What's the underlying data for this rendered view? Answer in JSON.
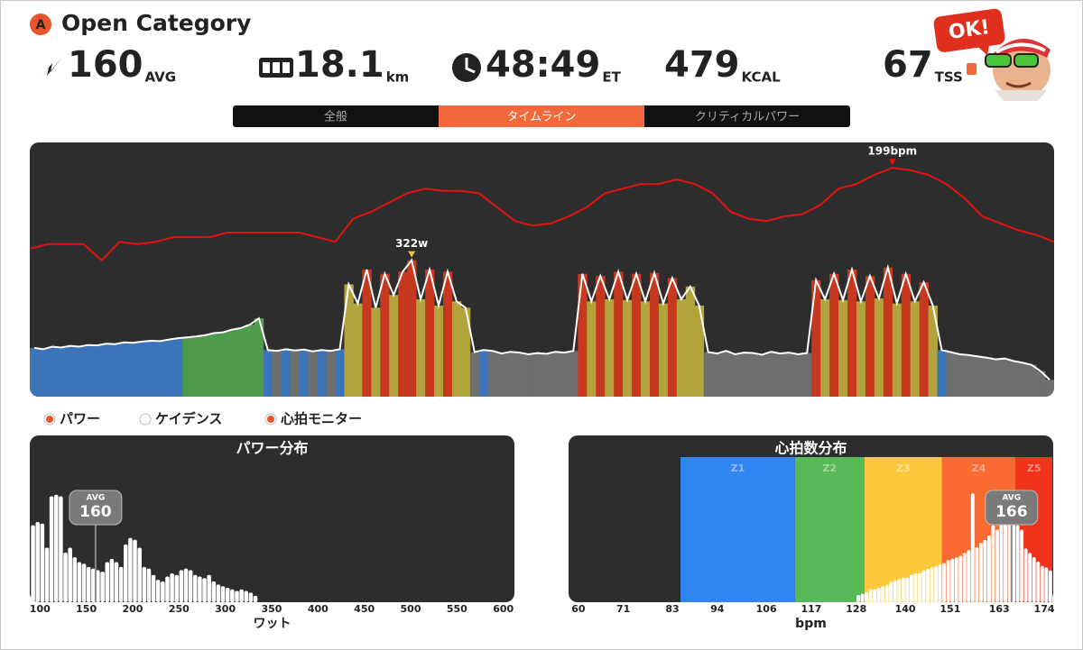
{
  "header": {
    "badge": "A",
    "title": "Open Category",
    "ok_badge": "OK!"
  },
  "stats": [
    {
      "value": 160,
      "unit": "AVG"
    },
    {
      "value": 18.1,
      "unit": "km"
    },
    {
      "value": "48:49",
      "unit": "ET"
    },
    {
      "value": 479,
      "unit": "KCAL"
    },
    {
      "value": 67,
      "unit": "TSS"
    }
  ],
  "tabs": {
    "items": [
      "全般",
      "タイムライン",
      "クリティカルパワー"
    ],
    "active": 1
  },
  "legend": [
    {
      "label": "パワー",
      "on": true
    },
    {
      "label": "ケイデンス",
      "on": false
    },
    {
      "label": "心拍モニター",
      "on": true
    }
  ],
  "chart_data": [
    {
      "type": "timeline",
      "ylim": [
        0,
        600
      ],
      "y2lim": [
        100,
        210
      ],
      "series": [
        {
          "kind": "bar",
          "line_color": "#ffffff",
          "peak_label": "322w",
          "peak_color": "#f2c23a",
          "zone_limits": [
            110,
            140,
            200,
            270
          ],
          "zone_colors": [
            "#6e6e6e",
            "#3b74b9",
            "#4f9b4c",
            "#b3a33b",
            "#c6391f"
          ],
          "values": [
            115,
            112,
            118,
            116,
            120,
            118,
            122,
            121,
            125,
            124,
            128,
            127,
            130,
            132,
            131,
            135,
            138,
            140,
            142,
            145,
            150,
            152,
            158,
            162,
            170,
            185,
            110,
            108,
            112,
            109,
            111,
            107,
            110,
            108,
            112,
            265,
            220,
            300,
            210,
            290,
            240,
            295,
            322,
            230,
            300,
            215,
            295,
            225,
            210,
            105,
            110,
            108,
            102,
            106,
            104,
            100,
            103,
            101,
            106,
            104,
            108,
            290,
            225,
            285,
            230,
            295,
            228,
            290,
            225,
            292,
            220,
            280,
            230,
            260,
            215,
            105,
            102,
            108,
            100,
            104,
            103,
            99,
            106,
            102,
            104,
            100,
            103,
            275,
            230,
            290,
            228,
            300,
            225,
            285,
            232,
            305,
            220,
            290,
            225,
            270,
            215,
            110,
            105,
            100,
            98,
            95,
            92,
            88,
            90,
            84,
            80,
            75,
            60,
            40
          ]
        },
        {
          "axis": "y2",
          "color": "#e3120f",
          "peak_label": "199bpm",
          "values": [
            164,
            166,
            166,
            166,
            159,
            167,
            166,
            167,
            169,
            169,
            169,
            171,
            171,
            171,
            171,
            171,
            169,
            167,
            177,
            180,
            184,
            188,
            190,
            189,
            189,
            188,
            182,
            176,
            174,
            175,
            178,
            182,
            188,
            190,
            192,
            192,
            194,
            192,
            188,
            180,
            177,
            176,
            178,
            179,
            183,
            190,
            192,
            196,
            199,
            198,
            196,
            192,
            186,
            178,
            175,
            172,
            170,
            167
          ]
        }
      ]
    },
    {
      "type": "histogram",
      "title": "パワー分布",
      "x_label": "ワット",
      "color": "#ffffff",
      "xlim": [
        89,
        612
      ],
      "ylim": [
        0,
        100
      ],
      "xticks": [
        100,
        150,
        200,
        250,
        300,
        350,
        400,
        450,
        500,
        550,
        600
      ],
      "bins": [
        90,
        95,
        100,
        105,
        110,
        115,
        120,
        125,
        130,
        135,
        140,
        145,
        150,
        155,
        160,
        165,
        170,
        175,
        180,
        185,
        190,
        195,
        200,
        205,
        210,
        215,
        220,
        225,
        230,
        235,
        240,
        245,
        250,
        255,
        260,
        265,
        270,
        275,
        280,
        285,
        290,
        295,
        300,
        305,
        310,
        315,
        320,
        325,
        330,
        335
      ],
      "counts": [
        48,
        50,
        49,
        34,
        66,
        67,
        66,
        31,
        34,
        28,
        25,
        24,
        22,
        21,
        20,
        19,
        25,
        27,
        25,
        22,
        36,
        40,
        39,
        34,
        22,
        21,
        17,
        14,
        13,
        16,
        18,
        17,
        20,
        21,
        20,
        17,
        16,
        15,
        17,
        13,
        11,
        10,
        9,
        8,
        7,
        8,
        7,
        6,
        4
      ],
      "average": {
        "label": "AVG",
        "value": 160
      }
    },
    {
      "type": "histogram",
      "title": "心拍数分布",
      "x_label": "bpm",
      "color": "#ffffff",
      "xlim": [
        57.6,
        176.2
      ],
      "ylim": [
        0,
        100
      ],
      "xticks": [
        60,
        71,
        83,
        94,
        106,
        117,
        128,
        140,
        151,
        163,
        174
      ],
      "zones": [
        {
          "label": "Z1",
          "from": 85,
          "to": 113,
          "color": "#2f86f0"
        },
        {
          "label": "Z2",
          "from": 113,
          "to": 130,
          "color": "#58b958"
        },
        {
          "label": "Z3",
          "from": 130,
          "to": 149,
          "color": "#fdc83c"
        },
        {
          "label": "Z4",
          "from": 149,
          "to": 167,
          "color": "#fa6a33"
        },
        {
          "label": "Z5",
          "from": 167,
          "to": 176,
          "color": "#f0331a"
        }
      ],
      "bins": [
        128,
        129,
        130,
        131,
        132,
        133,
        134,
        135,
        136,
        137,
        138,
        139,
        140,
        141,
        142,
        143,
        144,
        145,
        146,
        147,
        148,
        149,
        150,
        151,
        152,
        153,
        154,
        155,
        156,
        157,
        158,
        159,
        160,
        161,
        162,
        163,
        164,
        165,
        166,
        167,
        168,
        169,
        170,
        171,
        172,
        173,
        174,
        175,
        176
      ],
      "counts": [
        5,
        6,
        7,
        9,
        9,
        10,
        11,
        12,
        14,
        15,
        16,
        17,
        17,
        19,
        20,
        20,
        22,
        23,
        24,
        25,
        26,
        27,
        29,
        30,
        31,
        32,
        34,
        36,
        75,
        38,
        41,
        43,
        46,
        53,
        50,
        56,
        62,
        59,
        55,
        53,
        50,
        37,
        34,
        31,
        28,
        25,
        24,
        22
      ],
      "average": {
        "label": "AVG",
        "value": 166
      }
    }
  ]
}
